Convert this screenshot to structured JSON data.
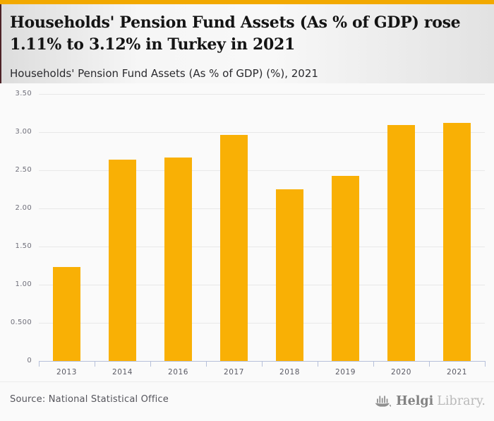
{
  "accent_color": "#F2A900",
  "bar_color": "#F9B005",
  "header": {
    "title_line1": "Households' Pension Fund Assets (As % of GDP) rose",
    "title_line2": "1.11% to 3.12% in Turkey in 2021",
    "subtitle": "Households' Pension Fund Assets (As % of GDP) (%), 2021"
  },
  "chart_data": {
    "type": "bar",
    "title": "Households' Pension Fund Assets (As % of GDP) (%), 2021",
    "categories": [
      "2013",
      "2014",
      "2016",
      "2017",
      "2018",
      "2019",
      "2020",
      "2021"
    ],
    "values": [
      1.23,
      2.64,
      2.67,
      2.96,
      2.25,
      2.43,
      3.09,
      3.12
    ],
    "xlabel": "",
    "ylabel": "",
    "ylim": [
      0,
      3.5
    ],
    "yticks": [
      {
        "label": "3.50",
        "value": 3.5
      },
      {
        "label": "3.00",
        "value": 3.0
      },
      {
        "label": "2.50",
        "value": 2.5
      },
      {
        "label": "2.00",
        "value": 2.0
      },
      {
        "label": "1.50",
        "value": 1.5
      },
      {
        "label": "1.00",
        "value": 1.0
      },
      {
        "label": "0.500",
        "value": 0.5
      },
      {
        "label": "0",
        "value": 0
      }
    ],
    "grid": true,
    "legend": false
  },
  "footer": {
    "source": "Source: National Statistical Office",
    "logo": {
      "icon": "helgi-ship-icon",
      "text_bold": "Helgi",
      "text_light": "Library."
    }
  }
}
